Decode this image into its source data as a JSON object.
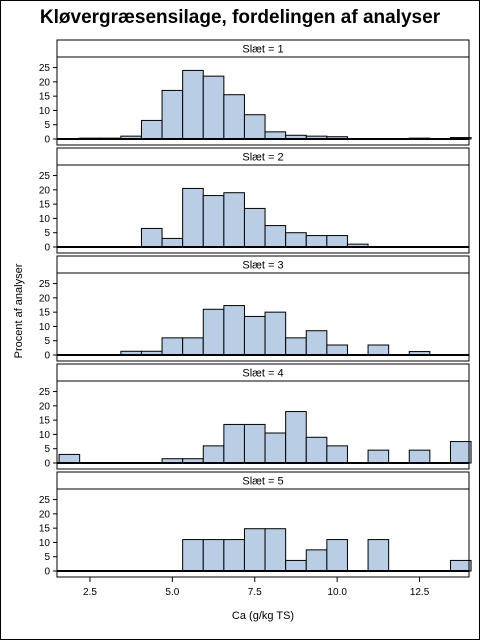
{
  "chart_data": {
    "type": "bar",
    "title": "Kløvergræsensilage, fordelingen af analyser",
    "xlabel": "Ca (g/kg TS)",
    "ylabel": "Procent af analyser",
    "xlim": [
      1.5,
      14.0
    ],
    "ylim": [
      0,
      28
    ],
    "x_ticks": [
      "2.5",
      "5.0",
      "7.5",
      "10.0",
      "12.5"
    ],
    "y_ticks": [
      "0",
      "5",
      "10",
      "15",
      "20",
      "25"
    ],
    "bin_width": 0.625,
    "bar_color": "#b9cde5",
    "panels": [
      {
        "label": "Slæt = 1",
        "bins": [
          {
            "x": 2.5,
            "y": 0.3
          },
          {
            "x": 3.125,
            "y": 0.3
          },
          {
            "x": 3.75,
            "y": 1
          },
          {
            "x": 4.375,
            "y": 6.5
          },
          {
            "x": 5.0,
            "y": 17
          },
          {
            "x": 5.625,
            "y": 24
          },
          {
            "x": 6.25,
            "y": 22
          },
          {
            "x": 6.875,
            "y": 15.5
          },
          {
            "x": 7.5,
            "y": 8.5
          },
          {
            "x": 8.125,
            "y": 2.5
          },
          {
            "x": 8.75,
            "y": 1.3
          },
          {
            "x": 9.375,
            "y": 1
          },
          {
            "x": 10.0,
            "y": 0.8
          },
          {
            "x": 12.5,
            "y": 0.3
          },
          {
            "x": 13.75,
            "y": 0.5
          }
        ]
      },
      {
        "label": "Slæt = 2",
        "bins": [
          {
            "x": 4.375,
            "y": 6.5
          },
          {
            "x": 5.0,
            "y": 3
          },
          {
            "x": 5.625,
            "y": 20.5
          },
          {
            "x": 6.25,
            "y": 18
          },
          {
            "x": 6.875,
            "y": 19
          },
          {
            "x": 7.5,
            "y": 13.5
          },
          {
            "x": 8.125,
            "y": 7.5
          },
          {
            "x": 8.75,
            "y": 5
          },
          {
            "x": 9.375,
            "y": 4
          },
          {
            "x": 10.0,
            "y": 4
          },
          {
            "x": 10.625,
            "y": 1
          }
        ]
      },
      {
        "label": "Slæt = 3",
        "bins": [
          {
            "x": 3.75,
            "y": 1.3
          },
          {
            "x": 4.375,
            "y": 1.3
          },
          {
            "x": 5.0,
            "y": 6
          },
          {
            "x": 5.625,
            "y": 6
          },
          {
            "x": 6.25,
            "y": 16
          },
          {
            "x": 6.875,
            "y": 17.3
          },
          {
            "x": 7.5,
            "y": 13.5
          },
          {
            "x": 8.125,
            "y": 15
          },
          {
            "x": 8.75,
            "y": 6
          },
          {
            "x": 9.375,
            "y": 8.5
          },
          {
            "x": 10.0,
            "y": 3.5
          },
          {
            "x": 11.25,
            "y": 3.5
          },
          {
            "x": 12.5,
            "y": 1.2
          }
        ]
      },
      {
        "label": "Slæt = 4",
        "bins": [
          {
            "x": 1.875,
            "y": 3
          },
          {
            "x": 5.0,
            "y": 1.5
          },
          {
            "x": 5.625,
            "y": 1.5
          },
          {
            "x": 6.25,
            "y": 6
          },
          {
            "x": 6.875,
            "y": 13.5
          },
          {
            "x": 7.5,
            "y": 13.5
          },
          {
            "x": 8.125,
            "y": 10.5
          },
          {
            "x": 8.75,
            "y": 18
          },
          {
            "x": 9.375,
            "y": 9
          },
          {
            "x": 10.0,
            "y": 6
          },
          {
            "x": 11.25,
            "y": 4.5
          },
          {
            "x": 12.5,
            "y": 4.5
          },
          {
            "x": 13.75,
            "y": 7.5
          }
        ]
      },
      {
        "label": "Slæt = 5",
        "bins": [
          {
            "x": 5.625,
            "y": 11
          },
          {
            "x": 6.25,
            "y": 11
          },
          {
            "x": 6.875,
            "y": 11
          },
          {
            "x": 7.5,
            "y": 14.8
          },
          {
            "x": 8.125,
            "y": 14.8
          },
          {
            "x": 8.75,
            "y": 3.7
          },
          {
            "x": 9.375,
            "y": 7.4
          },
          {
            "x": 10.0,
            "y": 11
          },
          {
            "x": 11.25,
            "y": 11
          },
          {
            "x": 13.75,
            "y": 3.7
          }
        ]
      }
    ]
  }
}
